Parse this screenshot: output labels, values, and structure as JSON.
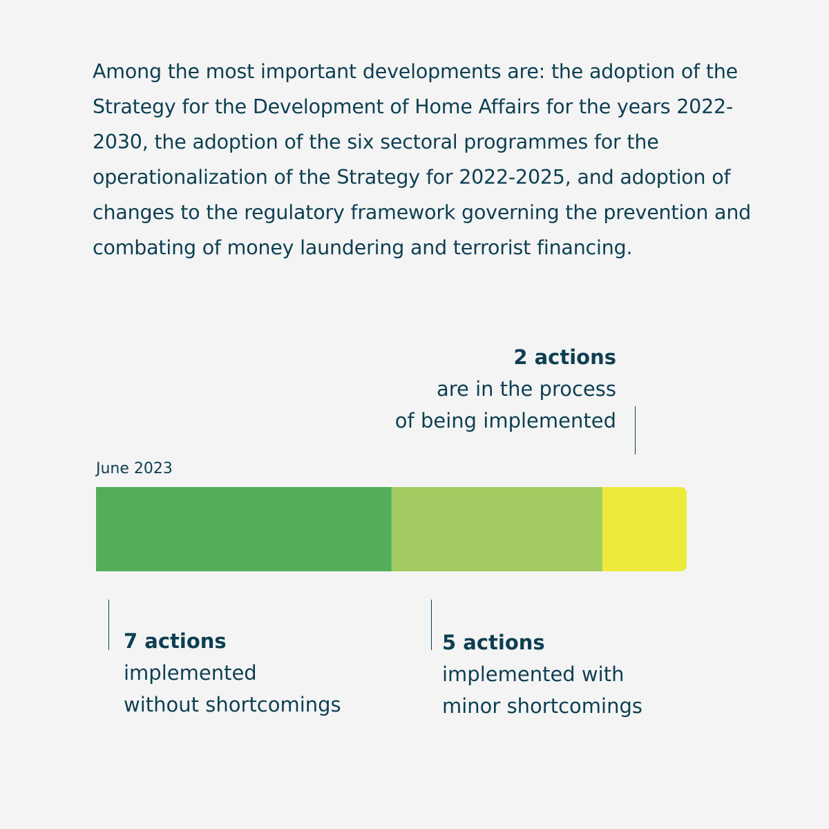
{
  "intro_text": "Among the most important developments are: the adoption of the Strategy for the Development of Home Affairs for the years 2022-2030, the adoption of the six sectoral programmes for the operationalization of the Strategy for 2022-2025, and adoption of changes to the regulatory framework governing the prevention and combating of money laundering and terrorist financing.",
  "chart_data": {
    "type": "bar",
    "orientation": "horizontal-stacked",
    "title": "",
    "period_label": "June 2023",
    "total": 14,
    "series": [
      {
        "count": 7,
        "value_label": "7 actions",
        "description_lines": [
          "implemented",
          "without shortcomings"
        ],
        "color": "#52ae5b"
      },
      {
        "count": 5,
        "value_label": "5 actions",
        "description_lines": [
          "implemented with",
          "minor shortcomings"
        ],
        "color": "#a1cb60"
      },
      {
        "count": 2,
        "value_label": "2 actions",
        "description_lines": [
          "are in the process",
          "of being implemented"
        ],
        "color": "#ecea3b"
      }
    ]
  }
}
